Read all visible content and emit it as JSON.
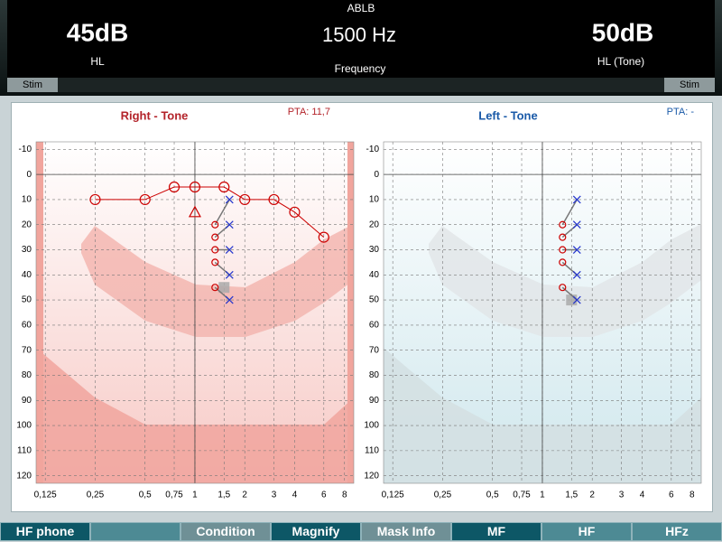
{
  "header": {
    "test": "ABLB",
    "left_level": "45dB",
    "left_unit": "HL",
    "frequency": "1500 Hz",
    "frequency_label": "Frequency",
    "right_level": "50dB",
    "right_unit": "HL (Tone)",
    "stim_left": "Stim",
    "stim_right": "Stim"
  },
  "chart_data": [
    {
      "type": "audiogram",
      "title": "Right - Tone",
      "pta": "PTA: 11,7",
      "color": "#b3232a",
      "theme": "red",
      "xscale": "log",
      "xlim": [
        0.11,
        9.1
      ],
      "ylim": [
        -13,
        123
      ],
      "xticks": [
        {
          "value": 0.125,
          "label": "0,125"
        },
        {
          "value": 0.25,
          "label": "0,25"
        },
        {
          "value": 0.5,
          "label": "0,5"
        },
        {
          "value": 0.75,
          "label": "0,75"
        },
        1,
        {
          "value": 1.5,
          "label": "1,5"
        },
        2,
        3,
        4,
        6,
        8
      ],
      "yticks": [
        -10,
        0,
        10,
        20,
        30,
        40,
        50,
        60,
        70,
        80,
        90,
        100,
        110,
        120
      ],
      "grid": true,
      "axis_lines": {
        "x": 1,
        "y": 0
      },
      "series": [
        {
          "marker": "circle",
          "color": "#cc0000",
          "connected": true,
          "x": [
            0.25,
            0.5,
            0.75,
            1,
            1.5,
            2,
            3,
            4,
            6
          ],
          "values": [
            10,
            10,
            5,
            5,
            5,
            10,
            10,
            15,
            25
          ]
        },
        {
          "marker": "triangle",
          "color": "#cc0000",
          "connected": false,
          "x": [
            1
          ],
          "values": [
            15
          ]
        }
      ],
      "ablb": {
        "frequency": 1.5,
        "circles": [
          20,
          25,
          30,
          35,
          45
        ],
        "crosses": [
          10,
          20,
          30,
          40,
          50
        ],
        "circle_color": "#cc0000",
        "cross_color": "#2233cc"
      },
      "cursor": {
        "x": 1.5,
        "y": 45
      }
    },
    {
      "type": "audiogram",
      "title": "Left - Tone",
      "pta": "PTA: -",
      "color": "#1a5aa8",
      "theme": "blue",
      "xscale": "log",
      "xlim": [
        0.11,
        9.1
      ],
      "ylim": [
        -13,
        123
      ],
      "xticks": [
        {
          "value": 0.125,
          "label": "0,125"
        },
        {
          "value": 0.25,
          "label": "0,25"
        },
        {
          "value": 0.5,
          "label": "0,5"
        },
        {
          "value": 0.75,
          "label": "0,75"
        },
        1,
        {
          "value": 1.5,
          "label": "1,5"
        },
        2,
        3,
        4,
        6,
        8
      ],
      "yticks": [
        -10,
        0,
        10,
        20,
        30,
        40,
        50,
        60,
        70,
        80,
        90,
        100,
        110,
        120
      ],
      "grid": true,
      "axis_lines": {
        "x": 1,
        "y": 0
      },
      "series": [],
      "ablb": {
        "frequency": 1.5,
        "circles": [
          20,
          25,
          30,
          35,
          45
        ],
        "crosses": [
          10,
          20,
          30,
          40,
          50
        ],
        "circle_color": "#cc0000",
        "cross_color": "#2233cc"
      },
      "cursor": {
        "x": 1.5,
        "y": 50
      }
    }
  ],
  "toolbar": [
    "HF phone",
    "",
    "Condition",
    "Magnify",
    "Mask Info",
    "MF",
    "HF",
    "HFz"
  ]
}
